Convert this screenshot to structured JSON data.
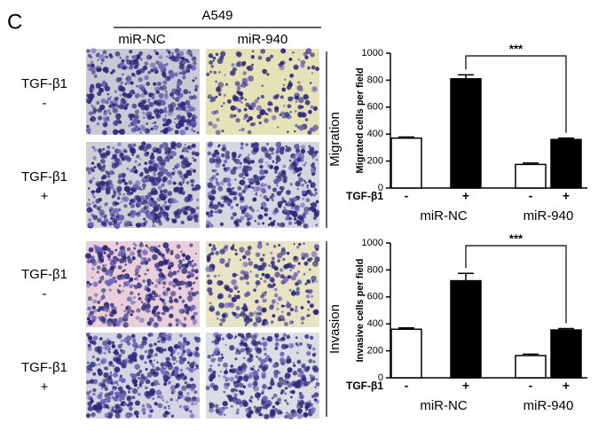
{
  "panel_label": "C",
  "cell_line": "A549",
  "columns": [
    "miR-NC",
    "miR-940"
  ],
  "row_labels": [
    {
      "name": "TGF-β1",
      "sign": "-"
    },
    {
      "name": "TGF-β1",
      "sign": "+"
    },
    {
      "name": "TGF-β1",
      "sign": "-"
    },
    {
      "name": "TGF-β1",
      "sign": "+"
    }
  ],
  "sections": [
    "Migration",
    "Invasion"
  ],
  "chart_data": [
    {
      "type": "bar",
      "ylabel": "Migrated cells per field",
      "treatment_label": "TGF-β1",
      "categories": [
        "-",
        "+",
        "-",
        "+"
      ],
      "groups": [
        "miR-NC",
        "miR-940"
      ],
      "values": [
        370,
        810,
        175,
        360
      ],
      "errors": [
        8,
        30,
        10,
        10
      ],
      "colors": [
        "#ffffff",
        "#000000",
        "#ffffff",
        "#000000"
      ],
      "annotation": "***",
      "ylim": [
        0,
        1000
      ],
      "yticks": [
        0,
        200,
        400,
        600,
        800,
        1000
      ]
    },
    {
      "type": "bar",
      "ylabel": "Invasive cells per field",
      "treatment_label": "TGF-β1",
      "categories": [
        "-",
        "+",
        "-",
        "+"
      ],
      "groups": [
        "miR-NC",
        "miR-940"
      ],
      "values": [
        360,
        720,
        165,
        355
      ],
      "errors": [
        10,
        55,
        10,
        10
      ],
      "colors": [
        "#ffffff",
        "#000000",
        "#ffffff",
        "#000000"
      ],
      "annotation": "***",
      "ylim": [
        0,
        1000
      ],
      "yticks": [
        0,
        200,
        400,
        600,
        800,
        1000
      ]
    }
  ]
}
